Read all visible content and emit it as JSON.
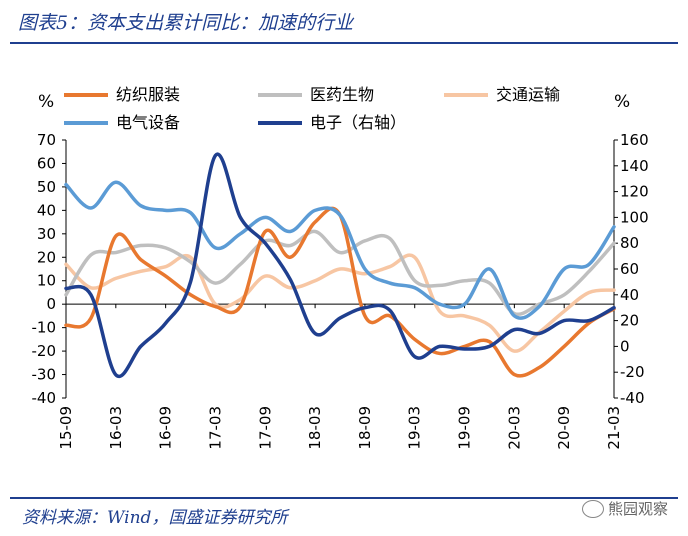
{
  "header": {
    "title": "图表5：资本支出累计同比：加速的行业"
  },
  "footer": {
    "source": "资料来源：Wind，国盛证券研究所",
    "watermark": "熊园观察"
  },
  "chart_data": {
    "type": "line",
    "left_unit": "%",
    "right_unit": "%",
    "x_tick_labels": [
      "15-09",
      "16-03",
      "16-09",
      "17-03",
      "17-09",
      "18-03",
      "18-09",
      "19-03",
      "19-09",
      "20-03",
      "20-09",
      "21-03"
    ],
    "x_range": [
      0,
      66
    ],
    "y_left": {
      "min": -40,
      "max": 70,
      "ticks": [
        -40,
        -30,
        -20,
        -10,
        0,
        10,
        20,
        30,
        40,
        50,
        60,
        70
      ]
    },
    "y_right": {
      "min": -40,
      "max": 160,
      "ticks": [
        -40,
        -20,
        0,
        20,
        40,
        60,
        80,
        100,
        120,
        140,
        160
      ]
    },
    "series": [
      {
        "name": "纺织服装",
        "axis": "left",
        "color": "#e8782f",
        "x": [
          0,
          3,
          6,
          9,
          12,
          15,
          18,
          21,
          24,
          27,
          30,
          33,
          36,
          39,
          42,
          45,
          48,
          51,
          54,
          57,
          60,
          63,
          66
        ],
        "y": [
          -9,
          -6,
          29,
          19,
          12,
          4,
          -1,
          -1,
          31,
          20,
          35,
          38,
          -5,
          -5,
          -15,
          -21,
          -18,
          -16,
          -30,
          -27,
          -18,
          -8,
          -2
        ]
      },
      {
        "name": "医药生物",
        "axis": "left",
        "color": "#bfbfbf",
        "x": [
          0,
          3,
          6,
          9,
          12,
          15,
          18,
          21,
          24,
          27,
          30,
          33,
          36,
          39,
          42,
          45,
          48,
          51,
          54,
          57,
          60,
          63,
          66
        ],
        "y": [
          4,
          21,
          22,
          25,
          24,
          18,
          9,
          17,
          27,
          25,
          31,
          22,
          27,
          28,
          10,
          8,
          10,
          9,
          -4,
          0,
          4,
          14,
          26
        ]
      },
      {
        "name": "交通运输",
        "axis": "left",
        "color": "#f7c6a3",
        "x": [
          0,
          3,
          6,
          9,
          12,
          15,
          18,
          21,
          24,
          27,
          30,
          33,
          36,
          39,
          42,
          45,
          48,
          51,
          54,
          57,
          60,
          63,
          66
        ],
        "y": [
          17,
          7,
          11,
          14,
          16,
          20,
          0,
          2,
          12,
          7,
          10,
          15,
          13,
          16,
          20,
          -3,
          -5,
          -9,
          -20,
          -12,
          -3,
          5,
          6
        ]
      },
      {
        "name": "电气设备",
        "axis": "left",
        "color": "#5b9bd5",
        "x": [
          0,
          3,
          6,
          9,
          12,
          15,
          18,
          21,
          24,
          27,
          30,
          33,
          36,
          39,
          42,
          45,
          48,
          51,
          54,
          57,
          60,
          63,
          66
        ],
        "y": [
          51,
          41,
          52,
          42,
          40,
          39,
          24,
          30,
          37,
          31,
          40,
          38,
          15,
          9,
          7,
          0,
          0,
          15,
          -5,
          -1,
          15,
          17,
          33
        ]
      },
      {
        "name": "电子（右轴）",
        "axis": "right",
        "color": "#1f3f8f",
        "x": [
          0,
          3,
          6,
          9,
          12,
          15,
          18,
          21,
          24,
          27,
          30,
          33,
          36,
          39,
          42,
          45,
          48,
          51,
          54,
          57,
          60,
          63,
          66
        ],
        "y": [
          45,
          40,
          -22,
          0,
          18,
          50,
          148,
          100,
          80,
          52,
          10,
          22,
          30,
          28,
          -8,
          0,
          -2,
          0,
          13,
          10,
          20,
          20,
          30
        ]
      }
    ]
  }
}
